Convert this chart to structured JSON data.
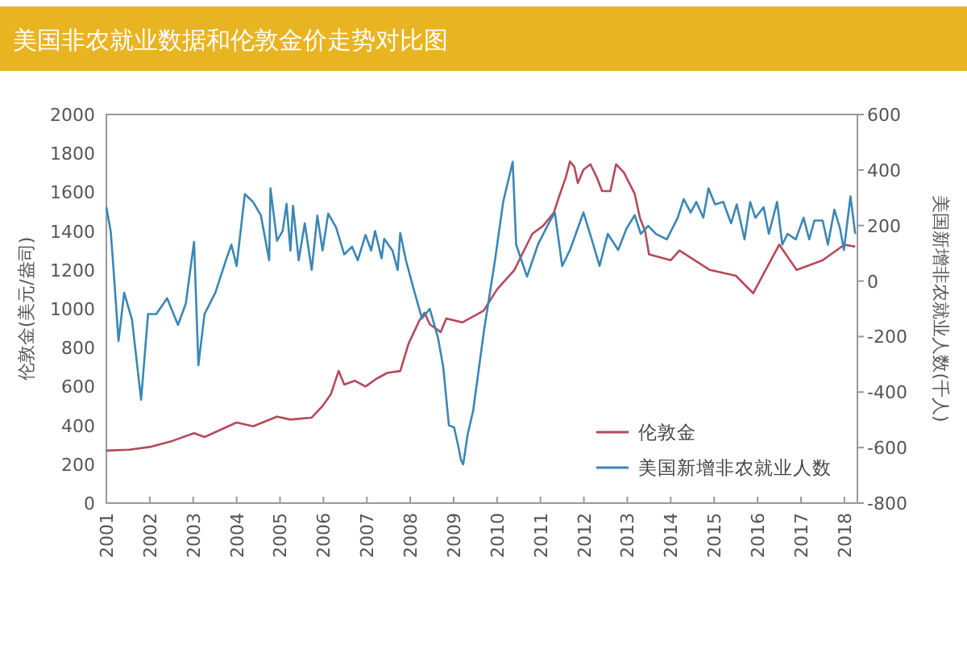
{
  "chart_data": {
    "type": "line",
    "title": "美国非农就业数据和伦敦金价走势对比图",
    "ylabel": "伦敦金(美元/盎司)",
    "y2label": "美国新增非农就业人数(千人)",
    "xlim": [
      2001,
      2018.3
    ],
    "xticks": [
      2001,
      2002,
      2003,
      2004,
      2005,
      2006,
      2007,
      2008,
      2009,
      2010,
      2011,
      2012,
      2013,
      2014,
      2015,
      2016,
      2017,
      2018
    ],
    "ylim": [
      0,
      2000
    ],
    "yticks": [
      0,
      200,
      400,
      600,
      800,
      1000,
      1200,
      1400,
      1600,
      1800,
      2000
    ],
    "y2lim": [
      -800,
      600
    ],
    "y2ticks": [
      -800,
      -600,
      -400,
      -200,
      0,
      200,
      400,
      600
    ],
    "legend": "bottom right",
    "grid": false,
    "marker": "none",
    "line_style": "solid",
    "series": [
      {
        "name": "伦敦金",
        "color": "#b5495b",
        "x": [
          2001.0,
          2001.53,
          2002.03,
          2002.52,
          2003.02,
          2003.26,
          2003.51,
          2004.0,
          2004.38,
          2004.93,
          2005.24,
          2005.73,
          2005.98,
          2006.17,
          2006.35,
          2006.48,
          2006.72,
          2006.97,
          2007.22,
          2007.47,
          2007.77,
          2007.96,
          2008.21,
          2008.33,
          2008.45,
          2008.7,
          2008.83,
          2009.2,
          2009.69,
          2010.0,
          2010.4,
          2010.81,
          2011.06,
          2011.31,
          2011.43,
          2011.58,
          2011.68,
          2011.78,
          2011.86,
          2011.99,
          2012.15,
          2012.3,
          2012.42,
          2012.61,
          2012.74,
          2012.92,
          2013.17,
          2013.29,
          2013.41,
          2013.5,
          2014.0,
          2014.2,
          2014.9,
          2015.5,
          2015.9,
          2016.5,
          2016.9,
          2017.5,
          2018.0,
          2018.25
        ],
        "values": [
          270,
          275,
          290,
          320,
          360,
          340,
          365,
          415,
          395,
          445,
          430,
          440,
          500,
          560,
          680,
          610,
          630,
          600,
          640,
          670,
          680,
          820,
          940,
          980,
          920,
          880,
          950,
          930,
          990,
          1100,
          1200,
          1386,
          1427,
          1496,
          1579,
          1675,
          1758,
          1730,
          1647,
          1716,
          1744,
          1675,
          1606,
          1606,
          1744,
          1702,
          1592,
          1468,
          1400,
          1280,
          1250,
          1300,
          1200,
          1170,
          1080,
          1330,
          1200,
          1250,
          1330,
          1320
        ]
      },
      {
        "name": "美国新增非农就业人数",
        "color": "#3a87b5",
        "axis": "y2",
        "x": [
          2001.0,
          2001.1,
          2001.16,
          2001.28,
          2001.41,
          2001.59,
          2001.8,
          2001.96,
          2002.15,
          2002.4,
          2002.65,
          2002.83,
          2003.02,
          2003.12,
          2003.26,
          2003.51,
          2003.75,
          2003.88,
          2004.0,
          2004.19,
          2004.38,
          2004.56,
          2004.75,
          2004.78,
          2004.93,
          2005.06,
          2005.15,
          2005.24,
          2005.3,
          2005.43,
          2005.57,
          2005.73,
          2005.86,
          2005.98,
          2006.11,
          2006.29,
          2006.48,
          2006.66,
          2006.79,
          2006.97,
          2007.1,
          2007.19,
          2007.34,
          2007.4,
          2007.59,
          2007.71,
          2007.77,
          2007.9,
          2008.08,
          2008.27,
          2008.45,
          2008.64,
          2008.76,
          2008.89,
          2009.01,
          2009.1,
          2009.17,
          2009.22,
          2009.32,
          2009.45,
          2009.7,
          2009.95,
          2010.14,
          2010.36,
          2010.44,
          2010.69,
          2010.94,
          2011.19,
          2011.33,
          2011.5,
          2011.68,
          2011.99,
          2012.18,
          2012.36,
          2012.55,
          2012.79,
          2012.98,
          2013.17,
          2013.31,
          2013.48,
          2013.66,
          2013.91,
          2014.16,
          2014.3,
          2014.46,
          2014.59,
          2014.75,
          2014.87,
          2015.02,
          2015.21,
          2015.39,
          2015.52,
          2015.7,
          2015.83,
          2015.95,
          2016.14,
          2016.26,
          2016.45,
          2016.57,
          2016.69,
          2016.88,
          2017.06,
          2017.19,
          2017.31,
          2017.5,
          2017.62,
          2017.77,
          2017.9,
          2017.99,
          2018.14,
          2018.25
        ],
        "values": [
          266,
          179,
          54,
          -216,
          -42,
          -139,
          -428,
          -119,
          -119,
          -62,
          -158,
          -81,
          141,
          -303,
          -119,
          -42,
          73,
          131,
          54,
          313,
          285,
          236,
          75,
          334,
          145,
          180,
          278,
          110,
          271,
          75,
          208,
          40,
          236,
          110,
          243,
          194,
          96,
          124,
          75,
          166,
          110,
          180,
          82,
          152,
          110,
          40,
          173,
          75,
          -30,
          -135,
          -100,
          -205,
          -310,
          -520,
          -527,
          -590,
          -646,
          -660,
          -555,
          -466,
          -177,
          73,
          285,
          430,
          131,
          16,
          131,
          208,
          247,
          54,
          112,
          247,
          150,
          54,
          170,
          112,
          189,
          237,
          170,
          199,
          170,
          150,
          228,
          295,
          247,
          285,
          228,
          334,
          276,
          285,
          208,
          276,
          150,
          285,
          228,
          266,
          170,
          285,
          131,
          170,
          150,
          228,
          150,
          218,
          218,
          131,
          257,
          189,
          112,
          305,
          170
        ]
      }
    ]
  }
}
